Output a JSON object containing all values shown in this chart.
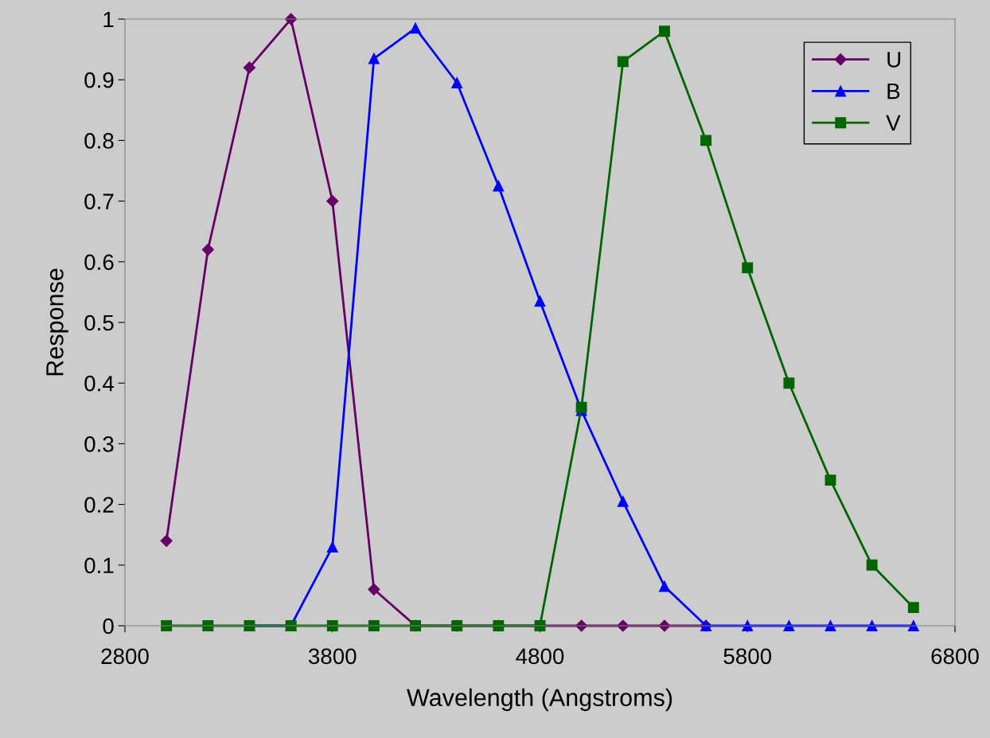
{
  "chart_data": {
    "type": "line",
    "xlabel": "Wavelength (Angstroms)",
    "ylabel": "Response",
    "xlim": [
      2800,
      6800
    ],
    "xticks": [
      2800,
      3800,
      4800,
      5800,
      6800
    ],
    "ylim": [
      0,
      1
    ],
    "yticks": [
      0,
      0.1,
      0.2,
      0.3,
      0.4,
      0.5,
      0.6,
      0.7,
      0.8,
      0.9,
      1
    ],
    "grid": false,
    "legend": "top right",
    "line_style": "solid",
    "series": [
      {
        "name": "U",
        "color": "#660066",
        "marker": "diamond",
        "x": [
          3000,
          3200,
          3400,
          3600,
          3800,
          4000,
          4200,
          4400,
          4600,
          4800,
          5000,
          5200,
          5400,
          5600
        ],
        "values": [
          0.14,
          0.62,
          0.92,
          1.0,
          0.7,
          0.06,
          0,
          0,
          0,
          0,
          0,
          0,
          0,
          0
        ]
      },
      {
        "name": "B",
        "color": "#0000ff",
        "marker": "triangle",
        "x": [
          3400,
          3600,
          3800,
          4000,
          4200,
          4400,
          4600,
          4800,
          5000,
          5200,
          5400,
          5600,
          5800,
          6000,
          6200,
          6400,
          6600
        ],
        "values": [
          0,
          0,
          0.13,
          0.935,
          0.985,
          0.895,
          0.725,
          0.535,
          0.355,
          0.205,
          0.065,
          0,
          0,
          0,
          0,
          0,
          0
        ]
      },
      {
        "name": "V",
        "color": "#006600",
        "marker": "square",
        "x": [
          3000,
          3200,
          3400,
          3600,
          3800,
          4000,
          4200,
          4400,
          4600,
          4800,
          5000,
          5200,
          5400,
          5600,
          5800,
          6000,
          6200,
          6400,
          6600
        ],
        "values": [
          0,
          0,
          0,
          0,
          0,
          0,
          0,
          0,
          0,
          0,
          0.36,
          0.93,
          0.98,
          0.8,
          0.59,
          0.4,
          0.24,
          0.1,
          0.03
        ]
      }
    ]
  }
}
